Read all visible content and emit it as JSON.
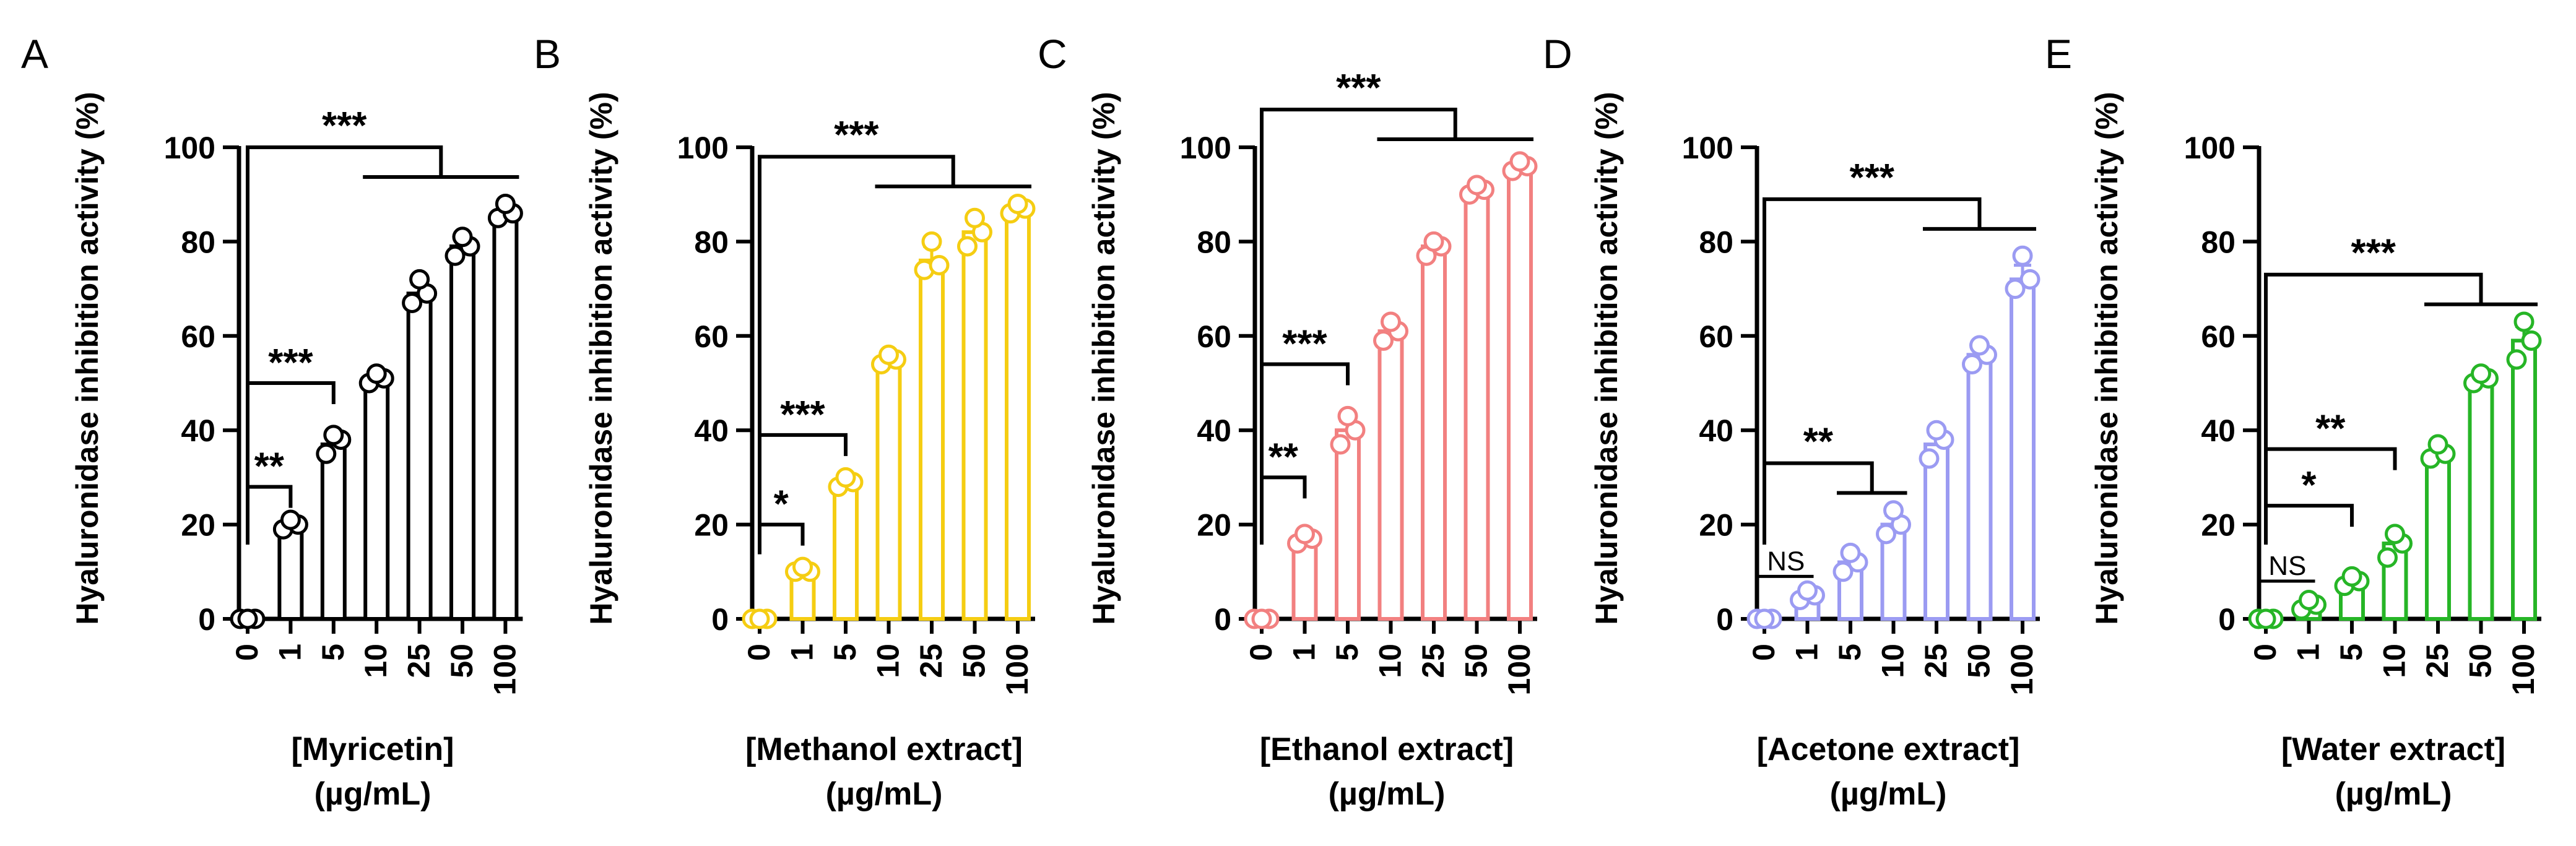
{
  "chart_data": [
    {
      "type": "bar",
      "panel": "A",
      "color": "#000000",
      "categories": [
        "0",
        "1",
        "5",
        "10",
        "25",
        "50",
        "100"
      ],
      "values": [
        0,
        20,
        37,
        51,
        69,
        79,
        86
      ],
      "errors": [
        0,
        1,
        2,
        1,
        2,
        2,
        1
      ],
      "points": [
        [
          0,
          0,
          0
        ],
        [
          19,
          20,
          21
        ],
        [
          35,
          38,
          39
        ],
        [
          50,
          51,
          52
        ],
        [
          67,
          69,
          72
        ],
        [
          77,
          79,
          81
        ],
        [
          85,
          86,
          88
        ]
      ],
      "title": "",
      "xlabel_line1": "[Myricetin]",
      "xlabel_line2": "(µg/mL)",
      "ylabel": "Hyaluronidase inhibition activity (%)",
      "ylim": [
        0,
        100
      ],
      "yticks": [
        "0",
        "20",
        "40",
        "60",
        "80",
        "100"
      ],
      "sig": [
        {
          "label": "**",
          "from": 0,
          "to": 1,
          "y": 28,
          "type": "simple"
        },
        {
          "label": "***",
          "from": 0,
          "to": 2,
          "y": 50,
          "type": "simple"
        },
        {
          "label": "***",
          "from": 0,
          "groupFrom": 3,
          "groupTo": 6,
          "y": 100,
          "type": "group"
        }
      ]
    },
    {
      "type": "bar",
      "panel": "B",
      "color": "#F5CD12",
      "categories": [
        "0",
        "1",
        "5",
        "10",
        "25",
        "50",
        "100"
      ],
      "values": [
        0,
        10,
        28,
        55,
        76,
        82,
        87
      ],
      "errors": [
        0,
        1,
        1,
        1,
        3,
        3,
        1
      ],
      "points": [
        [
          0,
          0,
          0
        ],
        [
          10,
          10,
          11
        ],
        [
          28,
          29,
          30
        ],
        [
          54,
          55,
          56
        ],
        [
          74,
          75,
          80
        ],
        [
          79,
          82,
          85
        ],
        [
          86,
          87,
          88
        ]
      ],
      "title": "",
      "xlabel_line1": "[Methanol extract]",
      "xlabel_line2": "(µg/mL)",
      "ylabel": "Hyaluronidase inhibition activity (%)",
      "ylim": [
        0,
        100
      ],
      "yticks": [
        "0",
        "20",
        "40",
        "60",
        "80",
        "100"
      ],
      "sig": [
        {
          "label": "*",
          "from": 0,
          "to": 1,
          "y": 20,
          "type": "simple"
        },
        {
          "label": "***",
          "from": 0,
          "to": 2,
          "y": 39,
          "type": "simple"
        },
        {
          "label": "***",
          "from": 0,
          "groupFrom": 3,
          "groupTo": 6,
          "y": 98,
          "type": "group"
        }
      ]
    },
    {
      "type": "bar",
      "panel": "C",
      "color": "#F28080",
      "categories": [
        "0",
        "1",
        "5",
        "10",
        "25",
        "50",
        "100"
      ],
      "values": [
        0,
        17,
        40,
        61,
        79,
        91,
        96
      ],
      "errors": [
        0,
        1,
        2,
        2,
        1,
        1,
        1
      ],
      "points": [
        [
          0,
          0,
          0
        ],
        [
          16,
          17,
          18
        ],
        [
          37,
          40,
          43
        ],
        [
          59,
          61,
          63
        ],
        [
          77,
          79,
          80
        ],
        [
          90,
          91,
          92
        ],
        [
          95,
          96,
          97
        ]
      ],
      "title": "",
      "xlabel_line1": "[Ethanol extract]",
      "xlabel_line2": "(µg/mL)",
      "ylabel": "Hyaluronidase inhibition activity (%)",
      "ylim": [
        0,
        100
      ],
      "yticks": [
        "0",
        "20",
        "40",
        "60",
        "80",
        "100"
      ],
      "sig": [
        {
          "label": "**",
          "from": 0,
          "to": 1,
          "y": 30,
          "type": "simple"
        },
        {
          "label": "***",
          "from": 0,
          "to": 2,
          "y": 54,
          "type": "simple"
        },
        {
          "label": "***",
          "from": 0,
          "groupFrom": 3,
          "groupTo": 6,
          "y": 108,
          "type": "group"
        }
      ]
    },
    {
      "type": "bar",
      "panel": "D",
      "color": "#9B9BF2",
      "categories": [
        "0",
        "1",
        "5",
        "10",
        "25",
        "50",
        "100"
      ],
      "values": [
        0,
        5,
        12,
        20,
        37,
        56,
        72
      ],
      "errors": [
        0,
        1,
        2,
        2,
        3,
        2,
        3
      ],
      "points": [
        [
          0,
          0,
          0
        ],
        [
          4,
          5,
          6
        ],
        [
          10,
          12,
          14
        ],
        [
          18,
          20,
          23
        ],
        [
          34,
          38,
          40
        ],
        [
          54,
          56,
          58
        ],
        [
          70,
          72,
          77
        ]
      ],
      "title": "",
      "xlabel_line1": "[Acetone extract]",
      "xlabel_line2": "(µg/mL)",
      "ylabel": "Hyaluronidase inhibition activity (%)",
      "ylim": [
        0,
        100
      ],
      "yticks": [
        "0",
        "20",
        "40",
        "60",
        "80",
        "100"
      ],
      "sig": [
        {
          "label": "NS",
          "from": 0,
          "to": 1,
          "y": 9,
          "type": "line"
        },
        {
          "label": "**",
          "from": 0,
          "groupFrom": 2,
          "groupTo": 3,
          "y": 33,
          "type": "group"
        },
        {
          "label": "***",
          "from": 0,
          "groupFrom": 4,
          "groupTo": 6,
          "y": 89,
          "type": "group"
        }
      ]
    },
    {
      "type": "bar",
      "panel": "E",
      "color": "#26B526",
      "categories": [
        "0",
        "1",
        "5",
        "10",
        "25",
        "50",
        "100"
      ],
      "values": [
        0,
        3,
        8,
        16,
        35,
        51,
        59
      ],
      "errors": [
        0,
        1,
        1,
        2,
        1,
        1,
        3
      ],
      "points": [
        [
          0,
          0,
          0
        ],
        [
          2,
          3,
          4
        ],
        [
          7,
          8,
          9
        ],
        [
          13,
          16,
          18
        ],
        [
          34,
          35,
          37
        ],
        [
          50,
          51,
          52
        ],
        [
          55,
          59,
          63
        ]
      ],
      "title": "",
      "xlabel_line1": "[Water extract]",
      "xlabel_line2": "(µg/mL)",
      "ylabel": "Hyaluronidase inhibition activity (%)",
      "ylim": [
        0,
        100
      ],
      "yticks": [
        "0",
        "20",
        "40",
        "60",
        "80",
        "100"
      ],
      "sig": [
        {
          "label": "NS",
          "from": 0,
          "to": 1,
          "y": 8,
          "type": "line"
        },
        {
          "label": "*",
          "from": 0,
          "to": 2,
          "y": 24,
          "type": "simple"
        },
        {
          "label": "**",
          "from": 0,
          "to": 3,
          "y": 36,
          "type": "simple"
        },
        {
          "label": "***",
          "from": 0,
          "groupFrom": 4,
          "groupTo": 6,
          "y": 73,
          "type": "group"
        }
      ]
    }
  ]
}
